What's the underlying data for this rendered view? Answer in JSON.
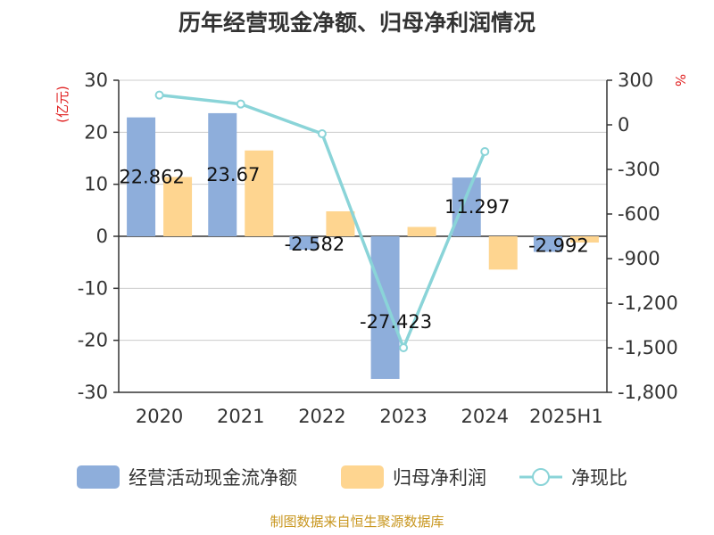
{
  "chart_data": {
    "type": "bar",
    "title": "历年经营现金净额、归母净利润情况",
    "categories": [
      "2020",
      "2021",
      "2022",
      "2023",
      "2024",
      "2025H1"
    ],
    "series": [
      {
        "name": "经营活动现金流净额",
        "type": "bar",
        "axis": "left",
        "color": "#8eaedb",
        "values": [
          22.862,
          23.67,
          -2.582,
          -27.423,
          11.297,
          -2.992
        ]
      },
      {
        "name": "归母净利润",
        "type": "bar",
        "axis": "left",
        "color": "#fed590",
        "values": [
          11.4,
          16.5,
          4.8,
          1.8,
          -6.4,
          -1.2
        ]
      },
      {
        "name": "净现比",
        "type": "line",
        "axis": "right",
        "color": "#8ad4d8",
        "values": [
          200,
          140,
          -60,
          -1500,
          -180,
          null
        ]
      }
    ],
    "data_labels": [
      "22.862",
      "23.67",
      "-2.582",
      "-27.423",
      "11.297",
      "-2.992"
    ],
    "left_axis": {
      "unit": "(亿元)",
      "ylim": [
        -30,
        30
      ],
      "ticks": [
        "30",
        "20",
        "10",
        "0",
        "-10",
        "-20",
        "-30"
      ]
    },
    "right_axis": {
      "unit": "%",
      "ylim": [
        -1800,
        300
      ],
      "ticks": [
        "300",
        "0",
        "-300",
        "-600",
        "-900",
        "-1,200",
        "-1,500",
        "-1,800"
      ]
    },
    "grid": true,
    "legend_position": "bottom",
    "source": "制图数据来自恒生聚源数据库"
  }
}
